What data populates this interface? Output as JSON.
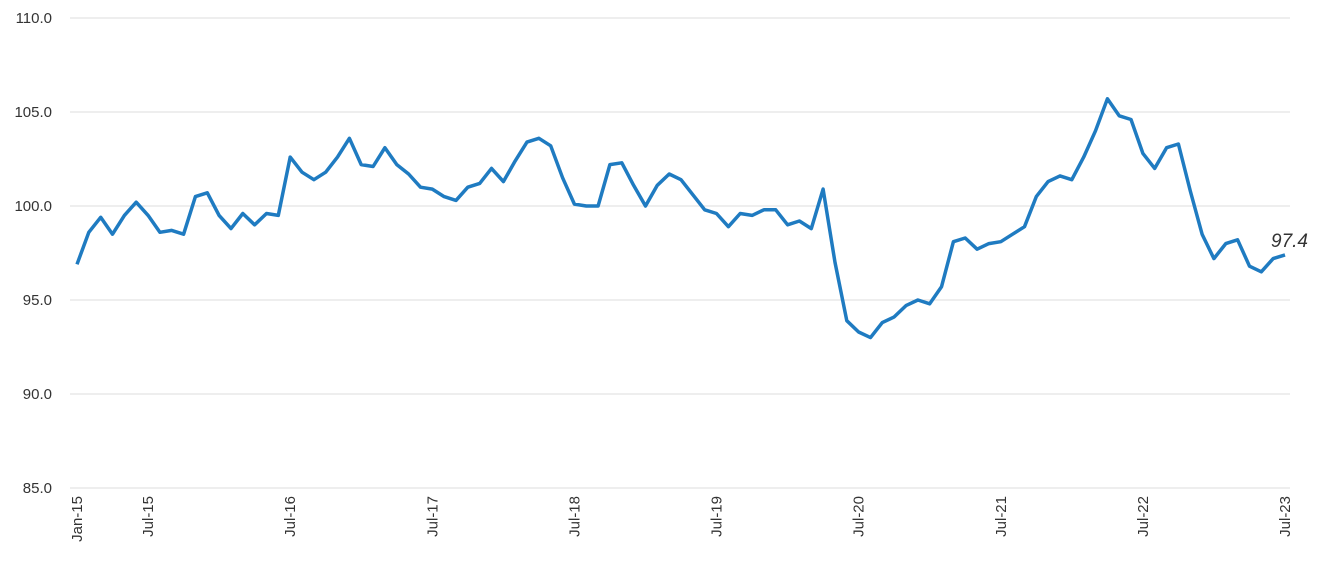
{
  "chart_data": {
    "type": "line",
    "categories": [
      "Jan-15",
      null,
      null,
      null,
      null,
      null,
      "Jul-15",
      null,
      null,
      null,
      null,
      null,
      null,
      null,
      null,
      null,
      null,
      null,
      "Jul-16",
      null,
      null,
      null,
      null,
      null,
      null,
      null,
      null,
      null,
      null,
      null,
      "Jul-17",
      null,
      null,
      null,
      null,
      null,
      null,
      null,
      null,
      null,
      null,
      null,
      "Jul-18",
      null,
      null,
      null,
      null,
      null,
      null,
      null,
      null,
      null,
      null,
      null,
      "Jul-19",
      null,
      null,
      null,
      null,
      null,
      null,
      null,
      null,
      null,
      null,
      null,
      "Jul-20",
      null,
      null,
      null,
      null,
      null,
      null,
      null,
      null,
      null,
      null,
      null,
      "Jul-21",
      null,
      null,
      null,
      null,
      null,
      null,
      null,
      null,
      null,
      null,
      null,
      "Jul-22",
      null,
      null,
      null,
      null,
      null,
      null,
      null,
      null,
      null,
      null,
      null,
      "Jul-23"
    ],
    "values": [
      96.9,
      98.6,
      99.4,
      98.5,
      99.5,
      100.2,
      99.5,
      98.6,
      98.7,
      98.5,
      100.5,
      100.7,
      99.5,
      98.8,
      99.6,
      99.0,
      99.6,
      99.5,
      102.6,
      101.8,
      101.4,
      101.8,
      102.6,
      103.6,
      102.2,
      102.1,
      103.1,
      102.2,
      101.7,
      101.0,
      100.9,
      100.5,
      100.3,
      101.0,
      101.2,
      102.0,
      101.3,
      102.4,
      103.4,
      103.6,
      103.2,
      101.5,
      100.1,
      100.0,
      100.0,
      102.2,
      102.3,
      101.1,
      100.0,
      101.1,
      101.7,
      101.4,
      100.6,
      99.8,
      99.6,
      98.9,
      99.6,
      99.5,
      99.8,
      99.8,
      99.0,
      99.2,
      98.8,
      100.9,
      97.0,
      93.9,
      93.3,
      93.0,
      93.8,
      94.1,
      94.7,
      95.0,
      94.8,
      95.7,
      98.1,
      98.3,
      97.7,
      98.0,
      98.1,
      98.5,
      98.9,
      100.5,
      101.3,
      101.6,
      101.4,
      102.6,
      104.0,
      105.7,
      104.8,
      104.6,
      102.8,
      102.0,
      103.1,
      103.3,
      100.8,
      98.5,
      97.2,
      98.0,
      98.2,
      96.8,
      96.5,
      97.2,
      97.4
    ],
    "color": "#1f7bc1",
    "ylim": [
      85,
      110
    ],
    "yticks": [
      {
        "value": 85,
        "label": "85.0"
      },
      {
        "value": 90,
        "label": "90.0"
      },
      {
        "value": 95,
        "label": "95.0"
      },
      {
        "value": 100,
        "label": "100.0"
      },
      {
        "value": 105,
        "label": "105.0"
      },
      {
        "value": 110,
        "label": "110.0"
      }
    ],
    "grid": true
  }
}
